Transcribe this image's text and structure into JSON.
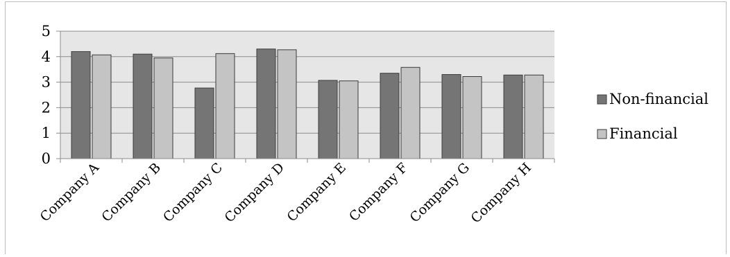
{
  "chart_data": {
    "type": "bar",
    "title": "",
    "xlabel": "",
    "ylabel": "",
    "categories": [
      "Company A",
      "Company B",
      "Company C",
      "Company D",
      "Company E",
      "Company F",
      "Company G",
      "Company H"
    ],
    "series": [
      {
        "name": "Non-financial",
        "color": "#757575",
        "values": [
          4.2,
          4.1,
          2.77,
          4.3,
          3.07,
          3.35,
          3.3,
          3.28
        ]
      },
      {
        "name": "Financial",
        "color": "#c4c4c4",
        "values": [
          4.07,
          3.95,
          4.12,
          4.27,
          3.05,
          3.58,
          3.22,
          3.28
        ]
      }
    ],
    "ylim": [
      0,
      5
    ],
    "yticks": [
      "0",
      "1",
      "2",
      "3",
      "4",
      "5"
    ],
    "grid": true,
    "legend_position": "right",
    "plot_background": "#e6e6e6"
  }
}
